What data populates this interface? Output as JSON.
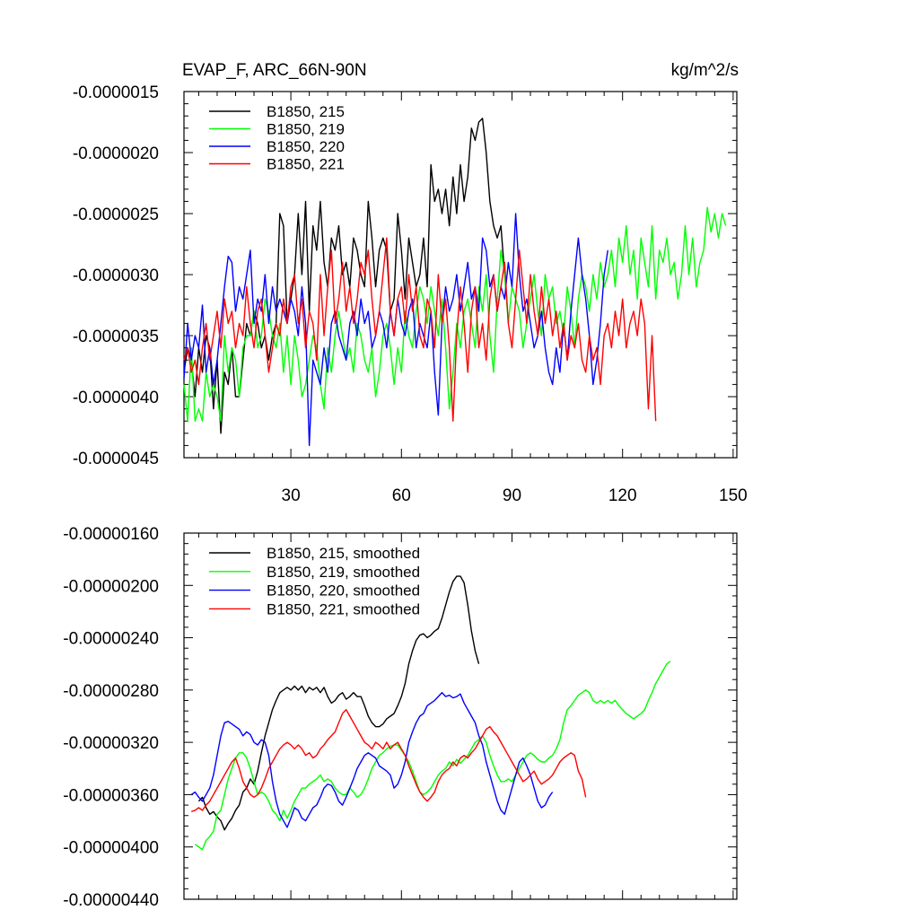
{
  "chart_data": [
    {
      "type": "line",
      "title": "EVAP_F, ARC_66N-90N",
      "units": "kg/m^2/s",
      "xlim": [
        1,
        151
      ],
      "ylim": [
        -4.5e-06,
        -1.5e-06
      ],
      "xticks": [
        30,
        60,
        90,
        120,
        150
      ],
      "xtick_labels": [
        "30",
        "60",
        "90",
        "120",
        "150"
      ],
      "yticks": [
        -1.5e-06,
        -2e-06,
        -2.5e-06,
        -3e-06,
        -3.5e-06,
        -4e-06,
        -4.5e-06
      ],
      "ytick_labels": [
        "-0.0000015",
        "-0.0000020",
        "-0.0000025",
        "-0.0000030",
        "-0.0000035",
        "-0.0000040",
        "-0.0000045"
      ],
      "legend_position": "top-left",
      "series": [
        {
          "name": "B1850, 215",
          "color": "#000000",
          "x_start": 1,
          "values": [
            -3.8,
            -3.6,
            -3.7,
            -4.0,
            -3.6,
            -3.8,
            -3.5,
            -3.6,
            -4.1,
            -3.7,
            -4.3,
            -3.8,
            -3.9,
            -3.6,
            -4.0,
            -4.0,
            -3.7,
            -3.4,
            -3.5,
            -3.3,
            -3.4,
            -3.6,
            -3.5,
            -3.7,
            -3.5,
            -3.4,
            -2.5,
            -2.6,
            -3.4,
            -3.2,
            -3.0,
            -2.5,
            -3.0,
            -2.4,
            -3.3,
            -2.6,
            -2.8,
            -2.4,
            -2.9,
            -3.1,
            -2.7,
            -2.8,
            -2.6,
            -3.0,
            -2.9,
            -3.1,
            -2.7,
            -2.8,
            -3.0,
            -3.1,
            -2.4,
            -2.7,
            -3.1,
            -2.8,
            -2.7,
            -2.8,
            -3.3,
            -3.2,
            -2.5,
            -2.8,
            -3.2,
            -2.7,
            -2.9,
            -3.1,
            -3.0,
            -2.7,
            -3.1,
            -2.1,
            -2.4,
            -2.3,
            -2.5,
            -2.3,
            -2.6,
            -2.2,
            -2.5,
            -2.1,
            -2.4,
            -2.2,
            -1.8,
            -1.9,
            -1.75,
            -1.72,
            -2.0,
            -2.4,
            -2.6,
            -2.7,
            -2.6,
            -3.0
          ]
        },
        {
          "name": "B1850, 219",
          "color": "#00ff00",
          "x_start": 1,
          "values": [
            -3.9,
            -4.2,
            -3.6,
            -4.2,
            -4.1,
            -4.2,
            -3.8,
            -4.0,
            -3.9,
            -4.0,
            -4.2,
            -3.5,
            -3.8,
            -3.6,
            -3.7,
            -4.0,
            -3.6,
            -3.5,
            -3.5,
            -3.3,
            -3.6,
            -3.5,
            -3.2,
            -3.3,
            -3.5,
            -3.6,
            -3.4,
            -3.8,
            -3.5,
            -3.9,
            -3.5,
            -3.7,
            -4.0,
            -3.9,
            -3.7,
            -3.5,
            -3.6,
            -3.9,
            -4.1,
            -3.6,
            -3.8,
            -3.5,
            -3.3,
            -3.5,
            -3.7,
            -3.6,
            -3.8,
            -3.4,
            -3.5,
            -3.7,
            -3.8,
            -3.6,
            -4.0,
            -3.8,
            -3.5,
            -3.4,
            -3.6,
            -3.9,
            -3.6,
            -3.8,
            -3.3,
            -3.5,
            -3.6,
            -3.3,
            -3.1,
            -3.2,
            -3.4,
            -3.1,
            -3.3,
            -3.5,
            -3.2,
            -3.6,
            -4.1,
            -3.8,
            -3.4,
            -3.6,
            -3.3,
            -3.2,
            -3.4,
            -3.6,
            -3.1,
            -3.3,
            -3.0,
            -3.5,
            -3.8,
            -3.2,
            -2.8,
            -3.0,
            -3.4,
            -3.1,
            -3.2,
            -3.3,
            -3.6,
            -3.4,
            -3.2,
            -3.0,
            -3.3,
            -3.5,
            -3.0,
            -3.2,
            -3.1,
            -3.4,
            -3.3,
            -3.5,
            -3.1,
            -3.3,
            -3.6,
            -3.2,
            -3.0,
            -3.1,
            -3.3,
            -3.0,
            -3.2,
            -2.9,
            -3.1,
            -3.0,
            -2.8,
            -3.1,
            -2.7,
            -2.9,
            -2.6,
            -3.0,
            -2.8,
            -3.2,
            -2.7,
            -2.9,
            -3.1,
            -2.6,
            -3.2,
            -2.8,
            -2.9,
            -2.7,
            -3.0,
            -2.9,
            -3.2,
            -3.0,
            -2.6,
            -3.0,
            -2.7,
            -3.1,
            -2.9,
            -2.8,
            -2.45,
            -2.65,
            -2.5,
            -2.7,
            -2.5,
            -2.6
          ]
        },
        {
          "name": "B1850, 220",
          "color": "#0000ff",
          "x_start": 1,
          "values": [
            -3.85,
            -3.4,
            -3.7,
            -3.5,
            -3.6,
            -3.25,
            -3.8,
            -3.6,
            -3.9,
            -3.7,
            -3.4,
            -3.1,
            -2.85,
            -2.9,
            -3.3,
            -3.1,
            -3.2,
            -3.0,
            -2.8,
            -3.4,
            -3.2,
            -3.3,
            -3.0,
            -3.4,
            -3.1,
            -3.3,
            -3.2,
            -3.3,
            -3.4,
            -3.2,
            -3.3,
            -3.5,
            -3.1,
            -3.4,
            -4.4,
            -3.7,
            -3.8,
            -3.9,
            -3.6,
            -3.8,
            -3.4,
            -3.3,
            -3.5,
            -3.6,
            -3.7,
            -3.4,
            -3.3,
            -3.5,
            -3.2,
            -3.4,
            -3.3,
            -3.6,
            -3.5,
            -3.3,
            -3.4,
            -3.6,
            -3.3,
            -3.5,
            -3.2,
            -3.4,
            -3.5,
            -3.3,
            -3.2,
            -3.6,
            -3.4,
            -3.5,
            -3.6,
            -3.3,
            -3.8,
            -4.15,
            -3.4,
            -3.1,
            -3.3,
            -3.2,
            -3.0,
            -3.3,
            -3.1,
            -2.9,
            -3.2,
            -3.1,
            -3.3,
            -2.7,
            -2.8,
            -3.1,
            -3.0,
            -3.3,
            -3.1,
            -3.2,
            -2.9,
            -3.1,
            -2.5,
            -3.0,
            -3.3,
            -3.2,
            -3.4,
            -3.6,
            -3.5,
            -3.3,
            -3.6,
            -3.8,
            -3.9,
            -3.6,
            -3.8,
            -3.4,
            -3.7,
            -3.3,
            -3.0,
            -2.7,
            -3.0,
            -3.2,
            -3.5,
            -3.9,
            -3.7,
            -3.4,
            -3.0,
            -2.8
          ]
        },
        {
          "name": "B1850, 221",
          "color": "#ff0000",
          "x_start": 1,
          "values": [
            -3.7,
            -3.6,
            -3.8,
            -3.7,
            -3.9,
            -3.6,
            -3.4,
            -3.7,
            -3.5,
            -3.3,
            -3.6,
            -3.2,
            -3.4,
            -3.3,
            -3.6,
            -3.4,
            -3.5,
            -3.1,
            -3.4,
            -3.6,
            -3.3,
            -3.2,
            -3.5,
            -3.8,
            -3.6,
            -3.4,
            -3.5,
            -3.2,
            -3.4,
            -3.1,
            -3.0,
            -3.4,
            -3.2,
            -3.6,
            -3.3,
            -3.4,
            -3.7,
            -3.0,
            -3.5,
            -3.1,
            -2.8,
            -3.4,
            -3.2,
            -2.9,
            -3.3,
            -3.1,
            -3.4,
            -3.2,
            -2.9,
            -3.0,
            -2.8,
            -3.2,
            -3.5,
            -3.3,
            -3.0,
            -2.7,
            -3.3,
            -3.5,
            -3.2,
            -3.1,
            -3.4,
            -3.0,
            -3.3,
            -3.1,
            -3.5,
            -3.6,
            -3.2,
            -3.3,
            -3.6,
            -3.0,
            -3.4,
            -3.2,
            -3.6,
            -4.2,
            -3.5,
            -3.1,
            -3.4,
            -3.8,
            -3.3,
            -3.1,
            -3.6,
            -3.4,
            -3.7,
            -3.2,
            -3.0,
            -3.3,
            -3.1,
            -2.9,
            -3.4,
            -3.6,
            -3.2,
            -2.8,
            -3.1,
            -3.4,
            -3.0,
            -3.3,
            -3.5,
            -3.1,
            -3.4,
            -3.2,
            -3.5,
            -3.3,
            -3.6,
            -3.4,
            -3.7,
            -3.5,
            -3.6,
            -3.4,
            -3.7,
            -3.8,
            -3.5,
            -3.7,
            -3.6,
            -3.9,
            -3.5,
            -3.4,
            -3.6,
            -3.3,
            -3.5,
            -3.2,
            -3.6,
            -3.4,
            -3.3,
            -3.5,
            -3.2,
            -3.4,
            -4.1,
            -3.5,
            -4.2
          ]
        }
      ]
    },
    {
      "type": "line",
      "xlim": [
        1,
        151
      ],
      "ylim": [
        -4.4e-06,
        -1.6e-06
      ],
      "xticks": [
        30,
        60,
        90,
        120,
        150
      ],
      "yticks": [
        -1.6e-06,
        -2e-06,
        -2.4e-06,
        -2.8e-06,
        -3.2e-06,
        -3.6e-06,
        -4e-06,
        -4.4e-06
      ],
      "ytick_labels": [
        "-0.00000160",
        "-0.00000200",
        "-0.00000240",
        "-0.00000280",
        "-0.00000320",
        "-0.00000360",
        "-0.00000400",
        "-0.00000440"
      ],
      "legend_position": "top-left",
      "series": [
        {
          "name": "B1850, 215, smoothed",
          "color": "#000000",
          "x_start": 5,
          "values": [
            -3.65,
            -3.62,
            -3.7,
            -3.75,
            -3.73,
            -3.77,
            -3.8,
            -3.87,
            -3.82,
            -3.78,
            -3.72,
            -3.68,
            -3.58,
            -3.55,
            -3.48,
            -3.52,
            -3.42,
            -3.28,
            -3.15,
            -3.05,
            -2.95,
            -2.88,
            -2.82,
            -2.8,
            -2.78,
            -2.8,
            -2.77,
            -2.8,
            -2.77,
            -2.82,
            -2.78,
            -2.8,
            -2.78,
            -2.82,
            -2.78,
            -2.85,
            -2.9,
            -2.88,
            -2.84,
            -2.82,
            -2.87,
            -2.85,
            -2.82,
            -2.85,
            -2.85,
            -2.92,
            -3.0,
            -3.05,
            -3.08,
            -3.08,
            -3.06,
            -3.02,
            -3.0,
            -2.98,
            -2.92,
            -2.85,
            -2.75,
            -2.6,
            -2.5,
            -2.42,
            -2.38,
            -2.37,
            -2.4,
            -2.38,
            -2.35,
            -2.33,
            -2.25,
            -2.15,
            -2.05,
            -1.97,
            -1.93,
            -1.93,
            -1.98,
            -2.15,
            -2.35,
            -2.5,
            -2.6
          ]
        },
        {
          "name": "B1850, 219, smoothed",
          "color": "#00ff00",
          "x_start": 4,
          "values": [
            -3.98,
            -4.0,
            -4.02,
            -3.95,
            -3.92,
            -3.88,
            -3.75,
            -3.72,
            -3.6,
            -3.48,
            -3.4,
            -3.32,
            -3.28,
            -3.28,
            -3.32,
            -3.4,
            -3.5,
            -3.6,
            -3.58,
            -3.6,
            -3.65,
            -3.72,
            -3.75,
            -3.8,
            -3.72,
            -3.78,
            -3.72,
            -3.65,
            -3.6,
            -3.55,
            -3.55,
            -3.52,
            -3.5,
            -3.48,
            -3.45,
            -3.5,
            -3.48,
            -3.5,
            -3.55,
            -3.58,
            -3.6,
            -3.6,
            -3.55,
            -3.58,
            -3.62,
            -3.6,
            -3.55,
            -3.48,
            -3.4,
            -3.35,
            -3.3,
            -3.28,
            -3.25,
            -3.23,
            -3.22,
            -3.22,
            -3.26,
            -3.3,
            -3.35,
            -3.42,
            -3.5,
            -3.58,
            -3.6,
            -3.58,
            -3.55,
            -3.5,
            -3.45,
            -3.42,
            -3.4,
            -3.35,
            -3.38,
            -3.33,
            -3.36,
            -3.33,
            -3.3,
            -3.25,
            -3.2,
            -3.18,
            -3.15,
            -3.2,
            -3.3,
            -3.38,
            -3.45,
            -3.5,
            -3.5,
            -3.48,
            -3.5,
            -3.45,
            -3.4,
            -3.35,
            -3.3,
            -3.28,
            -3.3,
            -3.33,
            -3.35,
            -3.35,
            -3.32,
            -3.3,
            -3.25,
            -3.18,
            -3.05,
            -2.95,
            -2.92,
            -2.88,
            -2.84,
            -2.82,
            -2.8,
            -2.82,
            -2.88,
            -2.9,
            -2.88,
            -2.9,
            -2.88,
            -2.9,
            -2.88,
            -2.92,
            -2.95,
            -2.98,
            -3.0,
            -3.02,
            -3.0,
            -2.98,
            -2.95,
            -2.88,
            -2.82,
            -2.75,
            -2.7,
            -2.65,
            -2.6,
            -2.58
          ]
        },
        {
          "name": "B1850, 220, smoothed",
          "color": "#0000ff",
          "x_start": 3,
          "values": [
            -3.6,
            -3.58,
            -3.62,
            -3.65,
            -3.6,
            -3.55,
            -3.45,
            -3.3,
            -3.15,
            -3.05,
            -3.04,
            -3.06,
            -3.08,
            -3.1,
            -3.15,
            -3.12,
            -3.14,
            -3.2,
            -3.22,
            -3.18,
            -3.2,
            -3.3,
            -3.5,
            -3.65,
            -3.75,
            -3.8,
            -3.85,
            -3.78,
            -3.7,
            -3.72,
            -3.78,
            -3.8,
            -3.75,
            -3.7,
            -3.68,
            -3.62,
            -3.55,
            -3.52,
            -3.53,
            -3.58,
            -3.65,
            -3.68,
            -3.62,
            -3.55,
            -3.48,
            -3.4,
            -3.35,
            -3.3,
            -3.28,
            -3.3,
            -3.32,
            -3.38,
            -3.4,
            -3.42,
            -3.45,
            -3.55,
            -3.52,
            -3.45,
            -3.35,
            -3.2,
            -3.12,
            -3.05,
            -3.0,
            -2.98,
            -2.92,
            -2.9,
            -2.88,
            -2.85,
            -2.82,
            -2.85,
            -2.84,
            -2.86,
            -2.85,
            -2.83,
            -2.9,
            -2.95,
            -3.0,
            -3.05,
            -3.15,
            -3.22,
            -3.35,
            -3.45,
            -3.55,
            -3.65,
            -3.72,
            -3.75,
            -3.65,
            -3.55,
            -3.45,
            -3.35,
            -3.32,
            -3.38,
            -3.45,
            -3.55,
            -3.65,
            -3.7,
            -3.68,
            -3.62,
            -3.58
          ]
        },
        {
          "name": "B1850, 221, smoothed",
          "color": "#ff0000",
          "x_start": 3,
          "values": [
            -3.73,
            -3.72,
            -3.7,
            -3.72,
            -3.68,
            -3.65,
            -3.6,
            -3.55,
            -3.5,
            -3.45,
            -3.4,
            -3.35,
            -3.32,
            -3.4,
            -3.5,
            -3.55,
            -3.6,
            -3.62,
            -3.6,
            -3.55,
            -3.48,
            -3.4,
            -3.35,
            -3.3,
            -3.25,
            -3.22,
            -3.2,
            -3.22,
            -3.25,
            -3.22,
            -3.25,
            -3.3,
            -3.28,
            -3.32,
            -3.3,
            -3.25,
            -3.22,
            -3.18,
            -3.15,
            -3.12,
            -3.05,
            -2.98,
            -2.95,
            -3.0,
            -3.05,
            -3.1,
            -3.15,
            -3.2,
            -3.22,
            -3.25,
            -3.2,
            -3.22,
            -3.25,
            -3.2,
            -3.25,
            -3.22,
            -3.2,
            -3.25,
            -3.3,
            -3.38,
            -3.45,
            -3.52,
            -3.58,
            -3.62,
            -3.65,
            -3.62,
            -3.58,
            -3.5,
            -3.45,
            -3.42,
            -3.4,
            -3.35,
            -3.38,
            -3.32,
            -3.3,
            -3.32,
            -3.28,
            -3.25,
            -3.2,
            -3.15,
            -3.1,
            -3.08,
            -3.12,
            -3.15,
            -3.2,
            -3.25,
            -3.3,
            -3.35,
            -3.4,
            -3.45,
            -3.5,
            -3.48,
            -3.45,
            -3.42,
            -3.48,
            -3.52,
            -3.5,
            -3.48,
            -3.45,
            -3.4,
            -3.35,
            -3.32,
            -3.3,
            -3.28,
            -3.3,
            -3.42,
            -3.48,
            -3.62
          ]
        }
      ]
    }
  ]
}
